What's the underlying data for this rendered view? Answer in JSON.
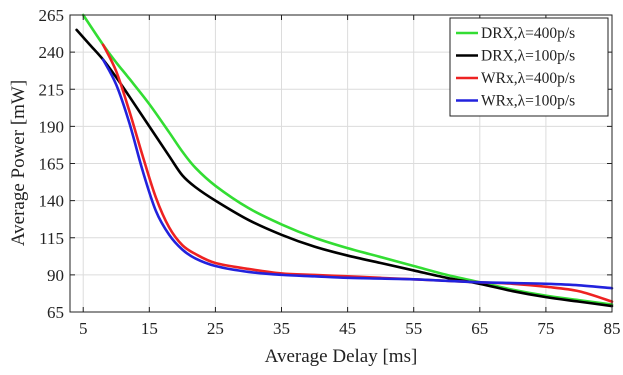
{
  "chart_data": {
    "type": "line",
    "xlabel": "Average Delay [ms]",
    "ylabel": "Average Power [mW]",
    "xlim": [
      3,
      85
    ],
    "ylim": [
      65,
      265
    ],
    "x_ticks": [
      5,
      15,
      25,
      35,
      45,
      55,
      65,
      75,
      85
    ],
    "y_ticks": [
      65,
      90,
      115,
      140,
      165,
      190,
      215,
      240,
      265
    ],
    "grid": true,
    "legend_position": "top-right",
    "series": [
      {
        "name": "DRX,λ=400p/s",
        "color": "#33dd33",
        "points": [
          [
            5,
            265
          ],
          [
            8,
            245
          ],
          [
            10,
            233
          ],
          [
            12,
            222
          ],
          [
            15,
            205
          ],
          [
            18,
            186
          ],
          [
            20,
            173
          ],
          [
            22,
            162
          ],
          [
            25,
            150
          ],
          [
            30,
            135
          ],
          [
            35,
            124
          ],
          [
            40,
            115
          ],
          [
            45,
            108
          ],
          [
            50,
            102
          ],
          [
            55,
            96
          ],
          [
            60,
            90
          ],
          [
            65,
            85
          ],
          [
            70,
            80
          ],
          [
            75,
            76
          ],
          [
            80,
            73
          ],
          [
            85,
            70
          ]
        ]
      },
      {
        "name": "DRX,λ=100p/s",
        "color": "#000000",
        "points": [
          [
            4,
            255
          ],
          [
            6,
            245
          ],
          [
            8,
            235
          ],
          [
            10,
            223
          ],
          [
            12,
            210
          ],
          [
            15,
            190
          ],
          [
            18,
            170
          ],
          [
            20,
            157
          ],
          [
            22,
            149
          ],
          [
            25,
            140
          ],
          [
            30,
            127
          ],
          [
            35,
            117
          ],
          [
            40,
            109
          ],
          [
            45,
            103
          ],
          [
            50,
            98
          ],
          [
            55,
            93
          ],
          [
            60,
            88
          ],
          [
            65,
            84
          ],
          [
            70,
            79
          ],
          [
            75,
            75
          ],
          [
            80,
            72
          ],
          [
            85,
            69
          ]
        ]
      },
      {
        "name": "WRx,λ=400p/s",
        "color": "#ee2222",
        "points": [
          [
            8,
            245
          ],
          [
            10,
            227
          ],
          [
            12,
            200
          ],
          [
            14,
            170
          ],
          [
            16,
            142
          ],
          [
            18,
            122
          ],
          [
            20,
            110
          ],
          [
            22,
            104
          ],
          [
            25,
            98
          ],
          [
            30,
            94
          ],
          [
            35,
            91
          ],
          [
            40,
            90
          ],
          [
            45,
            89
          ],
          [
            50,
            88
          ],
          [
            55,
            87
          ],
          [
            60,
            86
          ],
          [
            65,
            85
          ],
          [
            70,
            84
          ],
          [
            75,
            82
          ],
          [
            80,
            79
          ],
          [
            85,
            72
          ]
        ]
      },
      {
        "name": "WRx,λ=100p/s",
        "color": "#2222dd",
        "points": [
          [
            8,
            235
          ],
          [
            10,
            218
          ],
          [
            12,
            192
          ],
          [
            14,
            160
          ],
          [
            16,
            133
          ],
          [
            18,
            117
          ],
          [
            20,
            107
          ],
          [
            22,
            101
          ],
          [
            25,
            96
          ],
          [
            30,
            92
          ],
          [
            35,
            90
          ],
          [
            40,
            89
          ],
          [
            45,
            88
          ],
          [
            50,
            87.5
          ],
          [
            55,
            87
          ],
          [
            60,
            86
          ],
          [
            65,
            85
          ],
          [
            70,
            84.5
          ],
          [
            75,
            84
          ],
          [
            80,
            83
          ],
          [
            85,
            81
          ]
        ]
      }
    ]
  }
}
